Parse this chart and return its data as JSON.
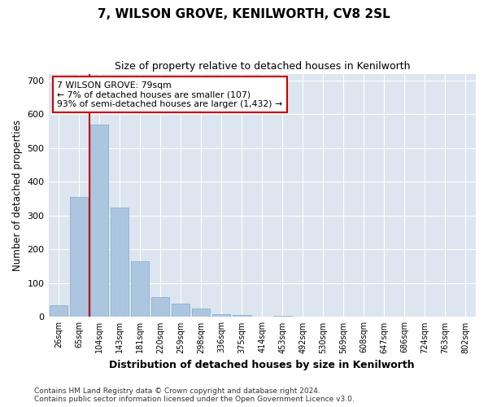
{
  "title": "7, WILSON GROVE, KENILWORTH, CV8 2SL",
  "subtitle": "Size of property relative to detached houses in Kenilworth",
  "xlabel": "Distribution of detached houses by size in Kenilworth",
  "ylabel": "Number of detached properties",
  "categories": [
    "26sqm",
    "65sqm",
    "104sqm",
    "143sqm",
    "181sqm",
    "220sqm",
    "259sqm",
    "298sqm",
    "336sqm",
    "375sqm",
    "414sqm",
    "453sqm",
    "492sqm",
    "530sqm",
    "569sqm",
    "608sqm",
    "647sqm",
    "686sqm",
    "724sqm",
    "763sqm",
    "802sqm"
  ],
  "values": [
    35,
    355,
    570,
    325,
    165,
    60,
    40,
    25,
    8,
    5,
    0,
    3,
    0,
    0,
    2,
    0,
    0,
    0,
    2,
    0,
    2
  ],
  "bar_color": "#adc6e0",
  "bar_edge_color": "#7aaac8",
  "vline_color": "#cc0000",
  "vline_x": 1.5,
  "annotation_text": "7 WILSON GROVE: 79sqm\n← 7% of detached houses are smaller (107)\n93% of semi-detached houses are larger (1,432) →",
  "annotation_box_color": "#ffffff",
  "annotation_box_edge": "#cc0000",
  "ylim": [
    0,
    720
  ],
  "yticks": [
    0,
    100,
    200,
    300,
    400,
    500,
    600,
    700
  ],
  "plot_bg_color": "#dde6f0",
  "fig_bg_color": "#ffffff",
  "footer_line1": "Contains HM Land Registry data © Crown copyright and database right 2024.",
  "footer_line2": "Contains public sector information licensed under the Open Government Licence v3.0."
}
